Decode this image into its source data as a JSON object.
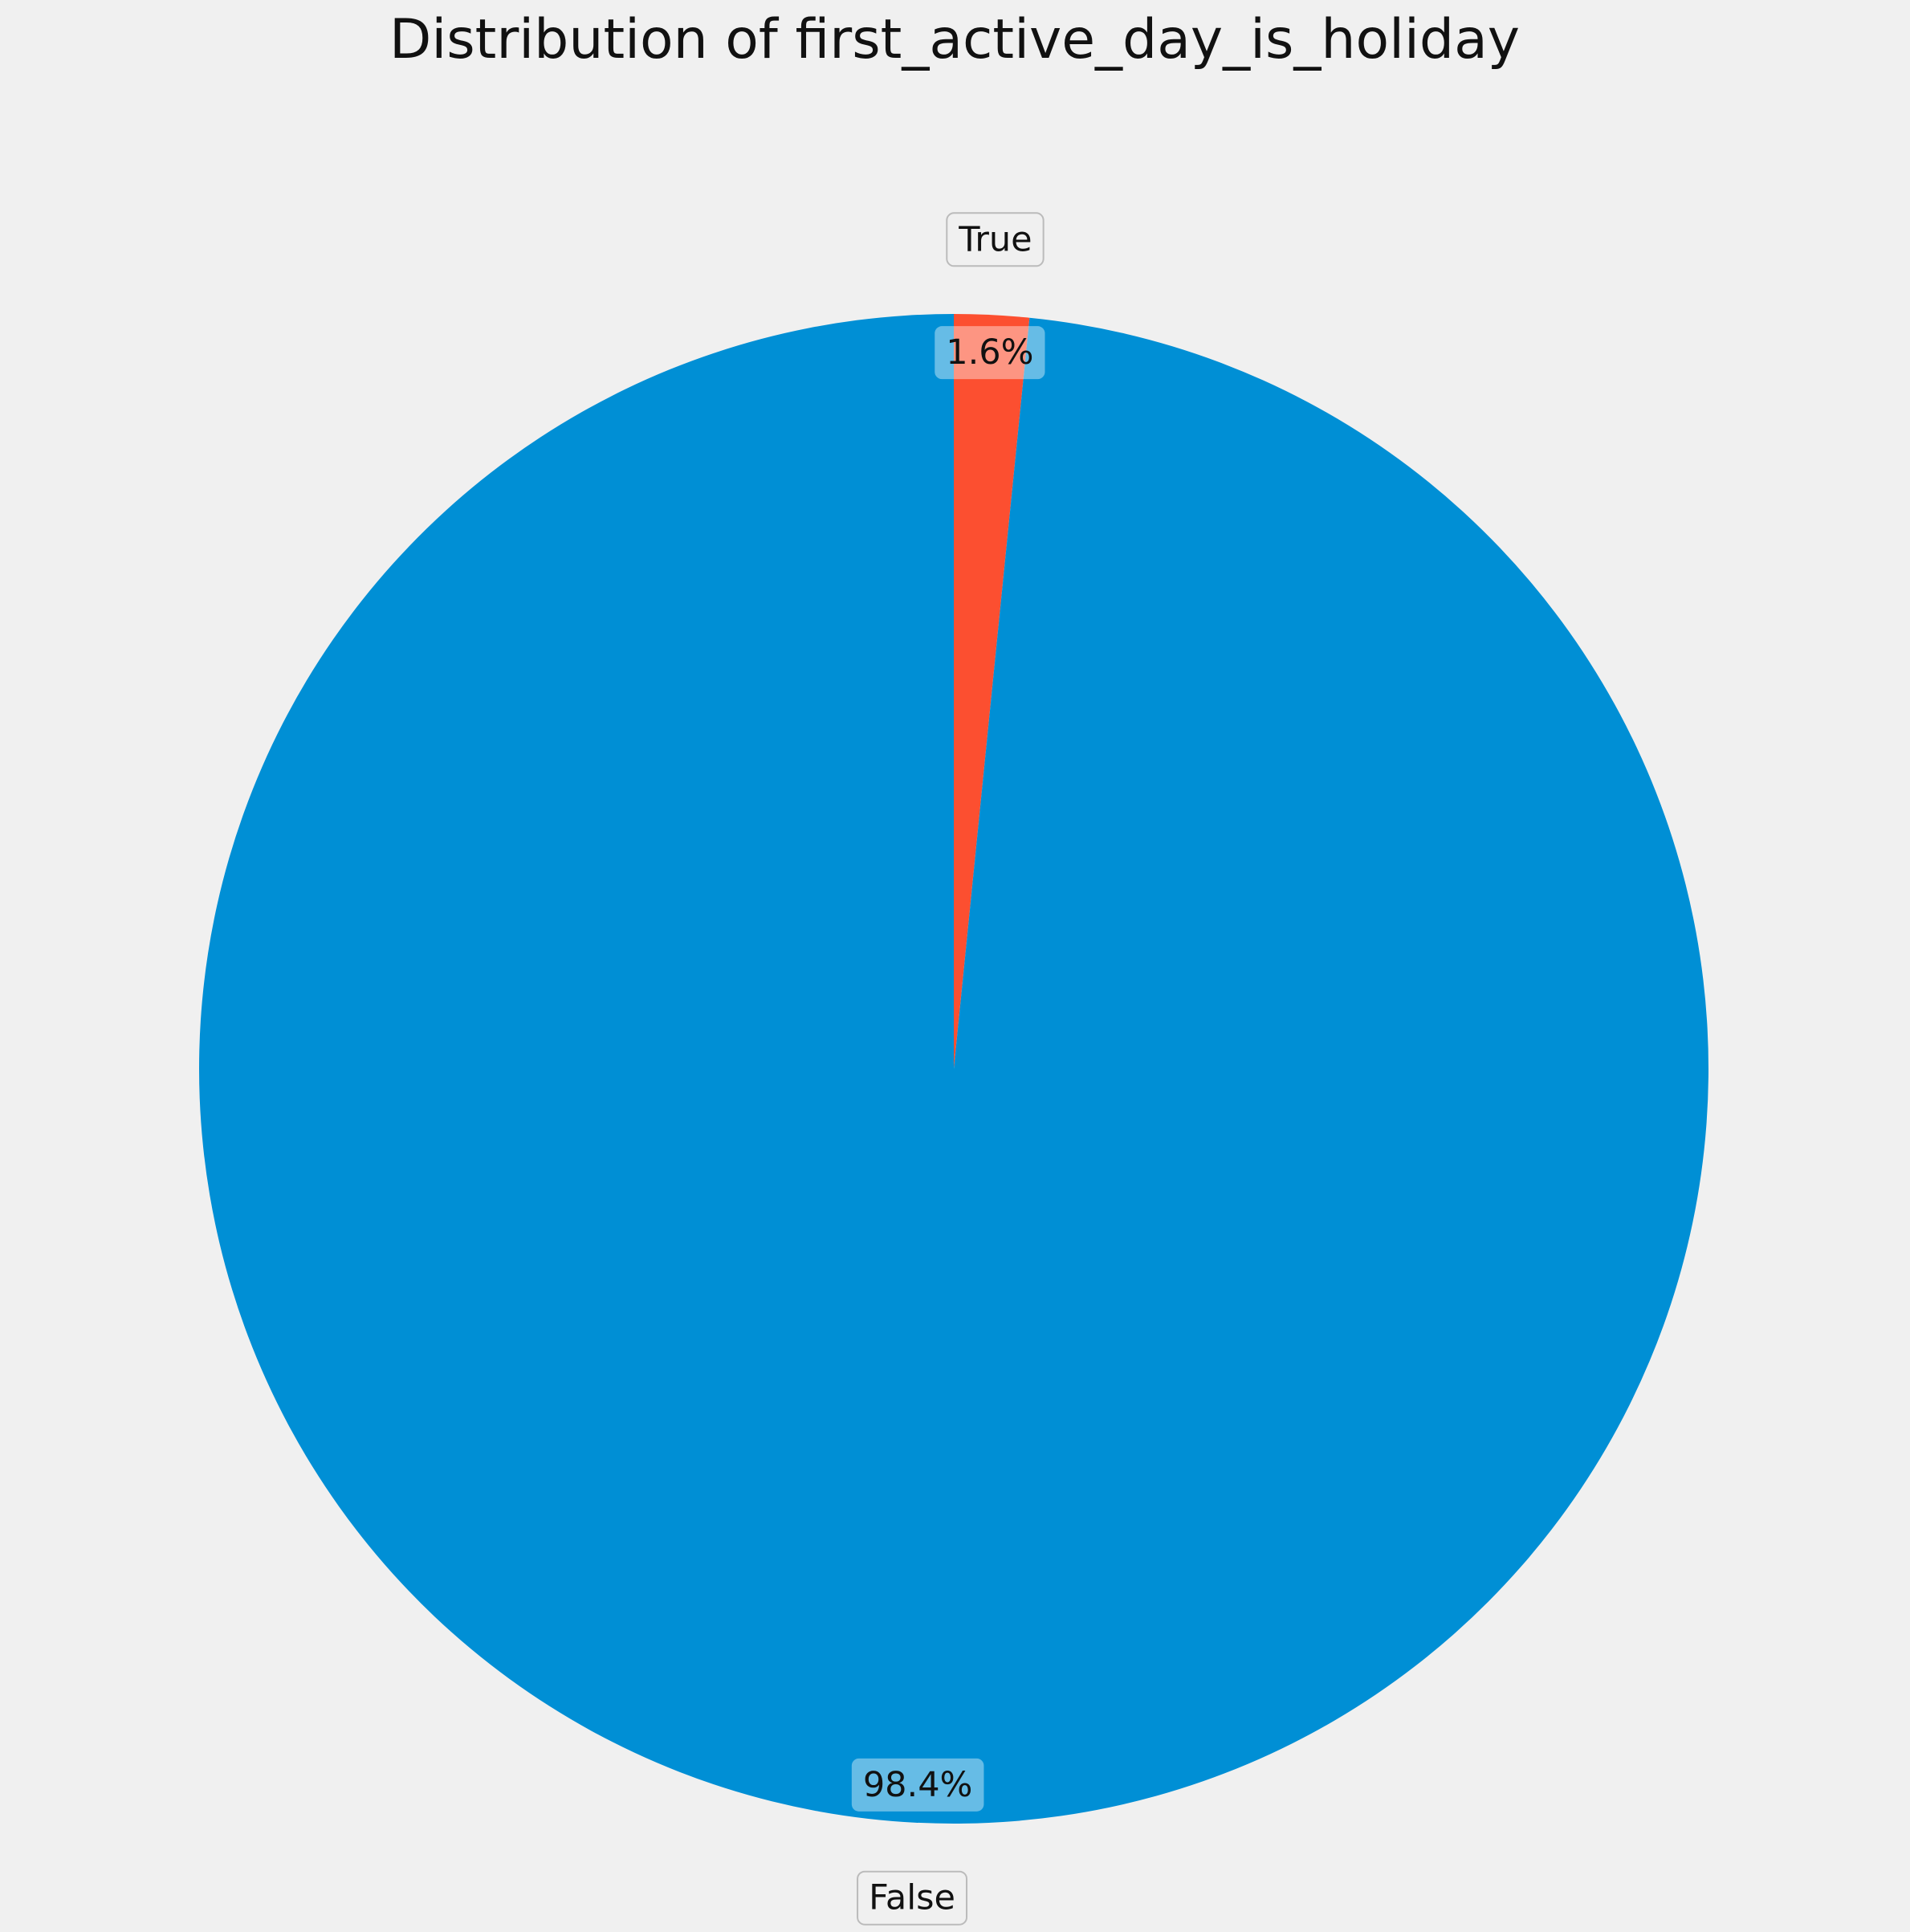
{
  "chart_data": {
    "type": "pie",
    "title": "Distribution of first_active_day_is_holiday",
    "slices": [
      {
        "name": "True",
        "value": 1.6,
        "pct_label": "1.6%",
        "color": "#fc4f30"
      },
      {
        "name": "False",
        "value": 98.4,
        "pct_label": "98.4%",
        "color": "#008fd5"
      }
    ],
    "start_angle_deg": 90,
    "direction": "clockwise",
    "background_color": "#f0f0f0",
    "label_box_color": "#f0f0f0",
    "pct_box_color": "#e0f0ff"
  }
}
